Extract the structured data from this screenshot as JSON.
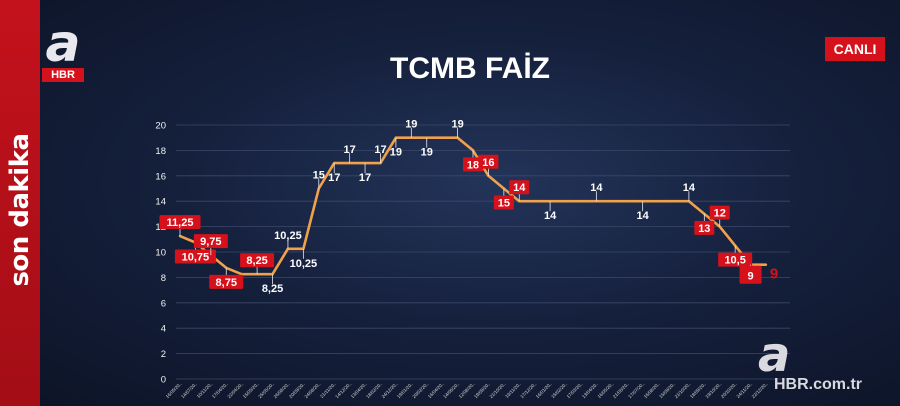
{
  "branding": {
    "side_text": "son dakika",
    "logo_letter": "a",
    "logo_sub": "HBR",
    "live_badge": "CANLI",
    "watermark_letter": "a",
    "watermark_site": "HBR.com.tr"
  },
  "colors": {
    "line": "#f0a14a",
    "red_label": "#d5121c",
    "grid": "#3b4868",
    "accent": "#c4121c"
  },
  "chart_data": {
    "type": "line",
    "title": "TCMB FAİZ",
    "ylim": [
      0,
      20
    ],
    "yticks": [
      0,
      2,
      4,
      6,
      8,
      10,
      12,
      14,
      16,
      18,
      20
    ],
    "grid": true,
    "series": [
      {
        "values": [
          11.25,
          10.75,
          9.75,
          8.75,
          8.25,
          8.25,
          8.25,
          10.25,
          10.25,
          15,
          17,
          17,
          17,
          17,
          19,
          19,
          19,
          19,
          19,
          18,
          16,
          15,
          14,
          14,
          14,
          14,
          14,
          14,
          14,
          14,
          14,
          14,
          14,
          14,
          13,
          12,
          10.5,
          9,
          9
        ]
      }
    ],
    "x_tick_labels": [
      "16/05/20..",
      "14/07/20..",
      "10/11/20..",
      "17/04/20..",
      "22/04/20..",
      "15/05/20..",
      "25/05/20..",
      "26/08/20..",
      "20/09/20..",
      "24/08/20..",
      "21/11/20..",
      "14/12/20..",
      "13/04/20..",
      "18/02/20..",
      "24/12/20..",
      "19/01/20..",
      "20/02/20..",
      "16/04/20..",
      "14/06/20..",
      "12/08/20..",
      "19/09/20..",
      "21/10/20..",
      "16/11/20..",
      "17/12/20..",
      "16/01/20..",
      "15/02/20..",
      "17/03/20..",
      "13/04/20..",
      "16/05/20..",
      "21/06/20..",
      "17/07/20..",
      "16/08/20..",
      "15/09/20..",
      "21/10/20..",
      "18/09/20..",
      "19/10/20..",
      "20/10/20..",
      "24/11/20..",
      "22/12/20.."
    ],
    "annotations": [
      {
        "text": "11,25",
        "index": 0,
        "style": "red"
      },
      {
        "text": "10,75",
        "index": 1,
        "style": "red"
      },
      {
        "text": "9,75",
        "index": 2,
        "style": "red"
      },
      {
        "text": "8,75",
        "index": 3,
        "style": "red"
      },
      {
        "text": "8,25",
        "index": 5,
        "style": "red"
      },
      {
        "text": "8,25",
        "index": 6,
        "style": "white"
      },
      {
        "text": "10,25",
        "index": 7,
        "style": "white"
      },
      {
        "text": "10,25",
        "index": 8,
        "style": "white"
      },
      {
        "text": "15",
        "index": 9,
        "style": "white"
      },
      {
        "text": "17",
        "index": 10,
        "style": "white"
      },
      {
        "text": "17",
        "index": 11,
        "style": "white"
      },
      {
        "text": "17",
        "index": 12,
        "style": "white"
      },
      {
        "text": "17",
        "index": 13,
        "style": "white"
      },
      {
        "text": "19",
        "index": 14,
        "style": "white"
      },
      {
        "text": "19",
        "index": 15,
        "style": "white"
      },
      {
        "text": "19",
        "index": 16,
        "style": "white"
      },
      {
        "text": "19",
        "index": 18,
        "style": "white"
      },
      {
        "text": "18",
        "index": 19,
        "style": "red"
      },
      {
        "text": "16",
        "index": 20,
        "style": "red"
      },
      {
        "text": "15",
        "index": 21,
        "style": "red"
      },
      {
        "text": "14",
        "index": 22,
        "style": "red"
      },
      {
        "text": "14",
        "index": 24,
        "style": "white"
      },
      {
        "text": "14",
        "index": 27,
        "style": "white"
      },
      {
        "text": "14",
        "index": 30,
        "style": "white"
      },
      {
        "text": "14",
        "index": 33,
        "style": "white"
      },
      {
        "text": "13",
        "index": 34,
        "style": "red"
      },
      {
        "text": "12",
        "index": 35,
        "style": "red"
      },
      {
        "text": "10,5",
        "index": 36,
        "style": "red"
      },
      {
        "text": "9",
        "index": 37,
        "style": "red-big"
      },
      {
        "text": "9",
        "index": 38,
        "style": "red-plain"
      }
    ]
  }
}
